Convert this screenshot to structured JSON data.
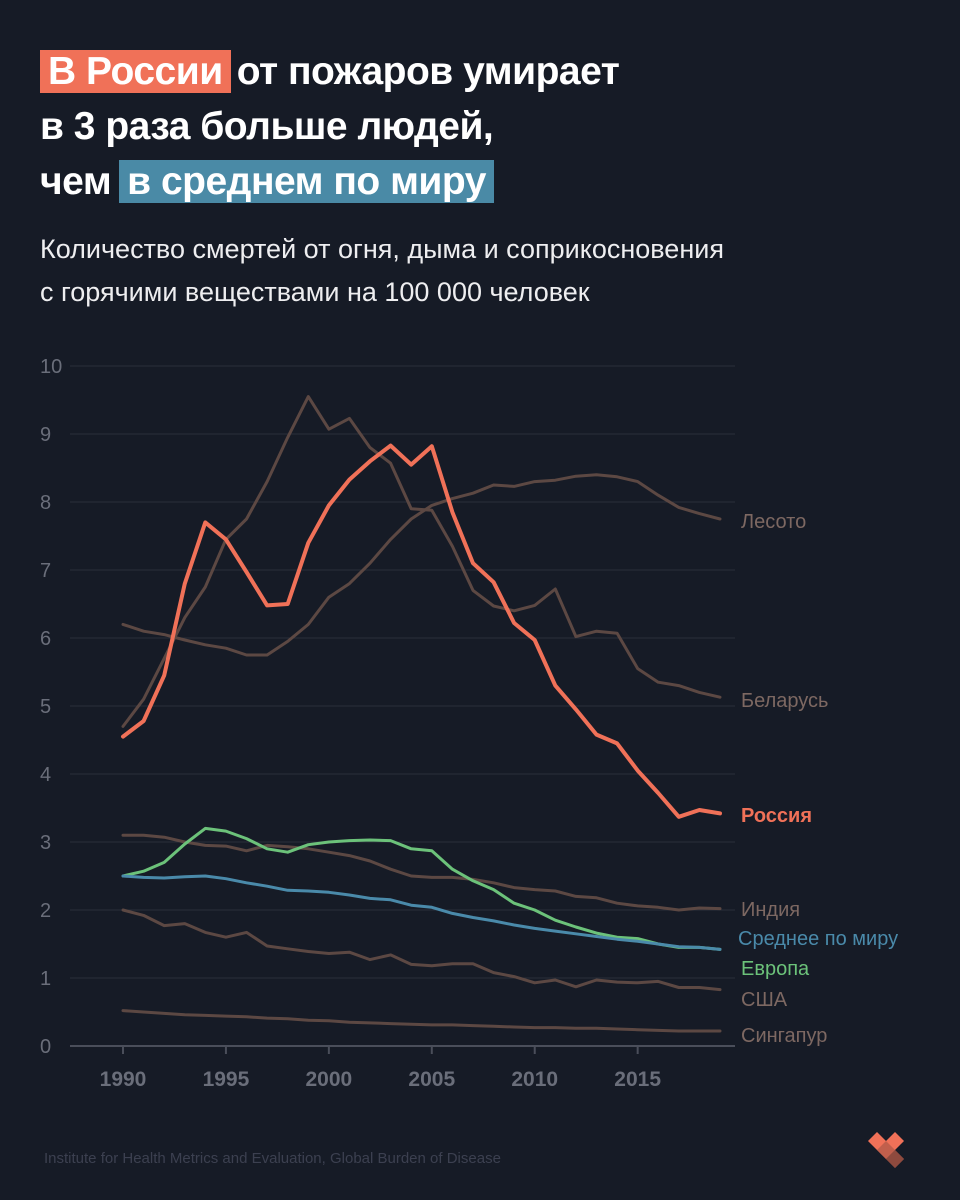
{
  "header": {
    "title_highlight_1": "В России",
    "title_part_1": "от пожаров умирает",
    "title_line_2": "в 3 раза больше людей,",
    "title_part_3": "чем",
    "title_highlight_2": "в среднем по миру",
    "subtitle_line_1": "Количество смертей от огня, дыма и соприкосновения",
    "subtitle_line_2": "с горячими веществами на 100 000 человек"
  },
  "footer": {
    "source": "Institute for Health Metrics and Evaluation, Global Burden of Disease"
  },
  "colors": {
    "background": "#161b26",
    "russia": "#f07158",
    "world": "#4a8aaa",
    "europe": "#6cc27a",
    "other": "#5c4843",
    "highlight_red": "#f07158",
    "highlight_blue": "#4a8aa6"
  },
  "chart_data": {
    "type": "line",
    "title": "",
    "xlabel": "",
    "ylabel": "",
    "xlim": [
      1990,
      2019
    ],
    "ylim": [
      0,
      10
    ],
    "x_ticks": [
      1990,
      1995,
      2000,
      2005,
      2010,
      2015
    ],
    "y_ticks": [
      0,
      1,
      2,
      3,
      4,
      5,
      6,
      7,
      8,
      9,
      10
    ],
    "grid": "horizontal",
    "legend": "direct labels at right end of lines",
    "x": [
      1990,
      1991,
      1992,
      1993,
      1994,
      1995,
      1996,
      1997,
      1998,
      1999,
      2000,
      2001,
      2002,
      2003,
      2004,
      2005,
      2006,
      2007,
      2008,
      2009,
      2010,
      2011,
      2012,
      2013,
      2014,
      2015,
      2016,
      2017,
      2018,
      2019
    ],
    "series": [
      {
        "name": "Лесото",
        "color": "#5c4843",
        "emphasis": false,
        "values": [
          6.2,
          6.1,
          6.05,
          5.97,
          5.9,
          5.85,
          5.75,
          5.75,
          5.95,
          6.2,
          6.6,
          6.8,
          7.1,
          7.45,
          7.75,
          7.95,
          8.05,
          8.13,
          8.25,
          8.23,
          8.3,
          8.32,
          8.38,
          8.4,
          8.37,
          8.3,
          8.1,
          7.92,
          7.83,
          7.75
        ]
      },
      {
        "name": "Беларусь",
        "color": "#5c4843",
        "emphasis": false,
        "values": [
          4.7,
          5.1,
          5.7,
          6.3,
          6.75,
          7.45,
          7.75,
          8.3,
          8.95,
          9.55,
          9.07,
          9.23,
          8.8,
          8.57,
          7.9,
          7.88,
          7.35,
          6.7,
          6.47,
          6.4,
          6.48,
          6.72,
          6.02,
          6.1,
          6.07,
          5.55,
          5.35,
          5.3,
          5.2,
          5.13
        ]
      },
      {
        "name": "Индия",
        "color": "#5c4843",
        "emphasis": false,
        "values": [
          3.1,
          3.1,
          3.07,
          3.0,
          2.95,
          2.94,
          2.87,
          2.95,
          2.93,
          2.9,
          2.85,
          2.8,
          2.72,
          2.6,
          2.5,
          2.48,
          2.48,
          2.45,
          2.4,
          2.33,
          2.3,
          2.28,
          2.2,
          2.18,
          2.1,
          2.06,
          2.04,
          2.0,
          2.03,
          2.02
        ]
      },
      {
        "name": "США",
        "color": "#5c4843",
        "emphasis": false,
        "values": [
          2.0,
          1.92,
          1.77,
          1.8,
          1.67,
          1.6,
          1.67,
          1.47,
          1.43,
          1.39,
          1.36,
          1.38,
          1.27,
          1.34,
          1.2,
          1.18,
          1.21,
          1.21,
          1.08,
          1.02,
          0.93,
          0.97,
          0.87,
          0.97,
          0.94,
          0.93,
          0.95,
          0.86,
          0.86,
          0.83
        ]
      },
      {
        "name": "Сингапур",
        "color": "#5c4843",
        "emphasis": false,
        "values": [
          0.52,
          0.5,
          0.48,
          0.46,
          0.45,
          0.44,
          0.43,
          0.41,
          0.4,
          0.38,
          0.37,
          0.35,
          0.34,
          0.33,
          0.32,
          0.31,
          0.31,
          0.3,
          0.29,
          0.28,
          0.27,
          0.27,
          0.26,
          0.26,
          0.25,
          0.24,
          0.23,
          0.22,
          0.22,
          0.22
        ]
      },
      {
        "name": "Европа",
        "color": "#6cc27a",
        "emphasis": false,
        "values": [
          2.5,
          2.57,
          2.7,
          2.97,
          3.2,
          3.16,
          3.05,
          2.9,
          2.85,
          2.96,
          3.0,
          3.02,
          3.03,
          3.02,
          2.9,
          2.87,
          2.6,
          2.43,
          2.3,
          2.1,
          2.0,
          1.85,
          1.75,
          1.66,
          1.6,
          1.58,
          1.5,
          1.45,
          1.45,
          1.42
        ]
      },
      {
        "name": "Среднее по миру",
        "color": "#4a8aaa",
        "emphasis": false,
        "values": [
          2.5,
          2.48,
          2.47,
          2.49,
          2.5,
          2.46,
          2.4,
          2.35,
          2.29,
          2.28,
          2.26,
          2.22,
          2.17,
          2.15,
          2.07,
          2.04,
          1.95,
          1.89,
          1.84,
          1.78,
          1.73,
          1.69,
          1.65,
          1.61,
          1.57,
          1.54,
          1.5,
          1.46,
          1.45,
          1.42
        ]
      },
      {
        "name": "Россия",
        "color": "#f07158",
        "emphasis": true,
        "values": [
          4.55,
          4.78,
          5.45,
          6.8,
          7.7,
          7.45,
          6.97,
          6.48,
          6.5,
          7.4,
          7.95,
          8.33,
          8.6,
          8.83,
          8.55,
          8.82,
          7.85,
          7.1,
          6.82,
          6.22,
          5.97,
          5.3,
          4.95,
          4.58,
          4.45,
          4.05,
          3.72,
          3.37,
          3.47,
          3.42
        ]
      }
    ]
  }
}
